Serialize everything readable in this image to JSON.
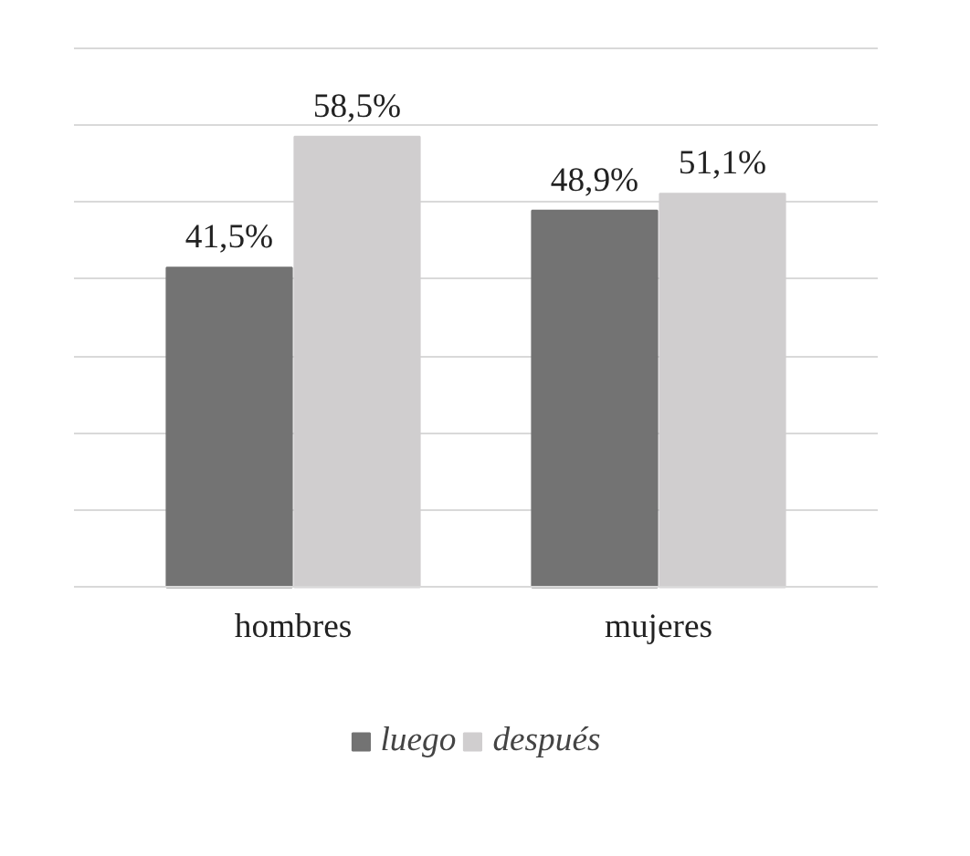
{
  "chart_data": {
    "type": "bar",
    "categories": [
      "hombres",
      "mujeres"
    ],
    "series": [
      {
        "name": "luego",
        "color": "#737373",
        "values": [
          41.5,
          48.9
        ],
        "value_labels": [
          "41,5%",
          "48,9%"
        ]
      },
      {
        "name": "después",
        "color": "#d0cecf",
        "values": [
          58.5,
          51.1
        ],
        "value_labels": [
          "58,5%",
          "51,1%"
        ]
      }
    ],
    "grid": "y",
    "tick_labels": "x",
    "legend": "bottom"
  }
}
